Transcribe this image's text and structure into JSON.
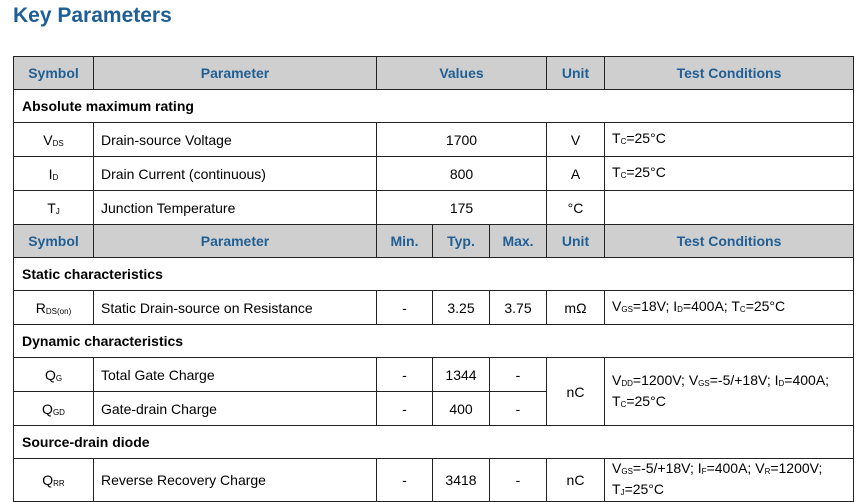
{
  "title": "Key Parameters",
  "colors": {
    "accent": "#1f5f95",
    "header_bg": "#d0cfcf"
  },
  "header1": {
    "symbol": "Symbol",
    "parameter": "Parameter",
    "values": "Values",
    "unit": "Unit",
    "conditions": "Test Conditions"
  },
  "section_absolute": "Absolute maximum rating",
  "absolute_rows": [
    {
      "sym": "V",
      "sub": "DS",
      "param": "Drain-source Voltage",
      "value": "1700",
      "unit": "V",
      "cond": [
        {
          "s": "T",
          "b": "C",
          "v": "=25°C"
        }
      ]
    },
    {
      "sym": "I",
      "sub": "D",
      "param": "Drain Current (continuous)",
      "value": "800",
      "unit": "A",
      "cond": [
        {
          "s": "T",
          "b": "C",
          "v": "=25°C"
        }
      ]
    },
    {
      "sym": "T",
      "sub": "J",
      "param": "Junction Temperature",
      "value": "175",
      "unit": "°C",
      "cond": []
    }
  ],
  "header2": {
    "symbol": "Symbol",
    "parameter": "Parameter",
    "min": "Min.",
    "typ": "Typ.",
    "max": "Max.",
    "unit": "Unit",
    "conditions": "Test Conditions"
  },
  "sections": [
    {
      "title": "Static characteristics",
      "rows": [
        {
          "sym": "R",
          "sub": "DS(on)",
          "param": "Static Drain-source on Resistance",
          "min": "-",
          "typ": "3.25",
          "max": "3.75",
          "unit": "mΩ",
          "cond": [
            {
              "s": "V",
              "b": "GS",
              "v": "=18V;"
            },
            {
              "s": "I",
              "b": "D",
              "v": "=400A;"
            },
            {
              "s": "T",
              "b": "C",
              "v": "=25°C"
            }
          ]
        }
      ]
    },
    {
      "title": "Dynamic characteristics",
      "rows": [
        {
          "sym": "Q",
          "sub": "G",
          "param": "Total Gate Charge",
          "min": "-",
          "typ": "1344",
          "max": "-",
          "unit": "nC",
          "cond": [
            {
              "s": "V",
              "b": "DD",
              "v": "=1200V;"
            },
            {
              "s": "V",
              "b": "GS",
              "v": "=-5/+18V;"
            },
            {
              "s": "I",
              "b": "D",
              "v": "=400A;"
            },
            {
              "s": "T",
              "b": "C",
              "v": "=25°C"
            }
          ]
        },
        {
          "sym": "Q",
          "sub": "GD",
          "param": "Gate-drain Charge",
          "min": "-",
          "typ": "400",
          "max": "-",
          "unit": null,
          "cond": null
        }
      ]
    },
    {
      "title": "Source-drain diode",
      "rows": [
        {
          "sym": "Q",
          "sub": "RR",
          "param": "Reverse Recovery Charge",
          "min": "-",
          "typ": "3418",
          "max": "-",
          "unit": "nC",
          "cond": [
            {
              "s": "V",
              "b": "GS",
              "v": "=-5/+18V;"
            },
            {
              "s": "I",
              "b": "F",
              "v": "=400A;"
            },
            {
              "s": "V",
              "b": "R",
              "v": "=1200V;"
            },
            {
              "s": "T",
              "b": "J",
              "v": "=25°C"
            }
          ]
        }
      ]
    }
  ]
}
